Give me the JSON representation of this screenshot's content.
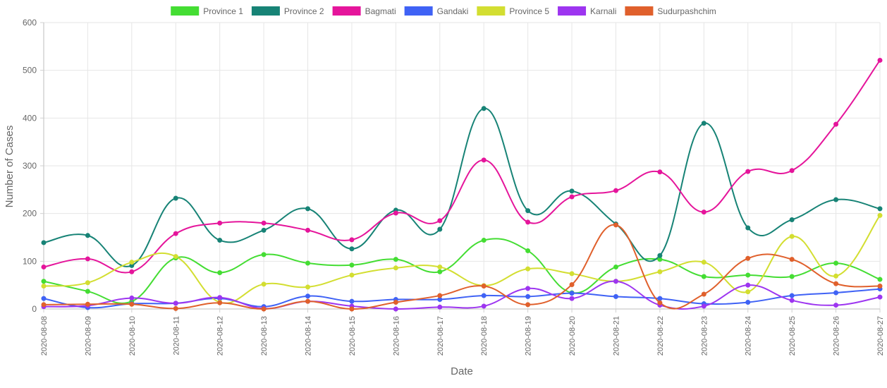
{
  "chart_data": {
    "type": "line",
    "xlabel": "Date",
    "ylabel": "Number of Cases",
    "ylim": [
      0,
      600
    ],
    "yticks": [
      0,
      100,
      200,
      300,
      400,
      500,
      600
    ],
    "grid": true,
    "legend_position": "top",
    "x": [
      "2020-08-08",
      "2020-08-09",
      "2020-08-10",
      "2020-08-11",
      "2020-08-12",
      "2020-08-13",
      "2020-08-14",
      "2020-08-15",
      "2020-08-16",
      "2020-08-17",
      "2020-08-18",
      "2020-08-19",
      "2020-08-20",
      "2020-08-21",
      "2020-08-22",
      "2020-08-23",
      "2020-08-24",
      "2020-08-25",
      "2020-08-26",
      "2020-08-27"
    ],
    "series": [
      {
        "name": "Province 1",
        "color": "#44dd33",
        "values": [
          58,
          37,
          16,
          107,
          76,
          114,
          96,
          92,
          104,
          78,
          144,
          122,
          34,
          88,
          104,
          68,
          71,
          68,
          96,
          62
        ]
      },
      {
        "name": "Province 2",
        "color": "#178376",
        "values": [
          139,
          154,
          91,
          232,
          144,
          165,
          210,
          126,
          207,
          167,
          420,
          206,
          247,
          178,
          112,
          389,
          170,
          187,
          229,
          210
        ]
      },
      {
        "name": "Bagmati",
        "color": "#e5159b",
        "values": [
          88,
          105,
          78,
          158,
          180,
          180,
          165,
          145,
          201,
          185,
          312,
          182,
          235,
          248,
          287,
          203,
          288,
          290,
          387,
          521
        ]
      },
      {
        "name": "Gandaki",
        "color": "#3f62f5",
        "values": [
          22,
          3,
          11,
          12,
          22,
          5,
          27,
          16,
          20,
          20,
          28,
          26,
          33,
          26,
          22,
          11,
          14,
          28,
          34,
          42
        ]
      },
      {
        "name": "Province 5",
        "color": "#d3de31",
        "values": [
          48,
          55,
          98,
          110,
          14,
          52,
          46,
          71,
          86,
          88,
          49,
          84,
          74,
          58,
          78,
          98,
          36,
          152,
          69,
          196
        ]
      },
      {
        "name": "Karnali",
        "color": "#9d35f0",
        "values": [
          5,
          7,
          23,
          12,
          24,
          1,
          16,
          6,
          0,
          4,
          6,
          43,
          22,
          58,
          8,
          6,
          50,
          18,
          8,
          25
        ]
      },
      {
        "name": "Sudurpashchim",
        "color": "#e0602c",
        "values": [
          9,
          10,
          10,
          1,
          13,
          0,
          16,
          0,
          14,
          28,
          48,
          9,
          51,
          176,
          13,
          31,
          106,
          104,
          53,
          48
        ]
      }
    ]
  }
}
